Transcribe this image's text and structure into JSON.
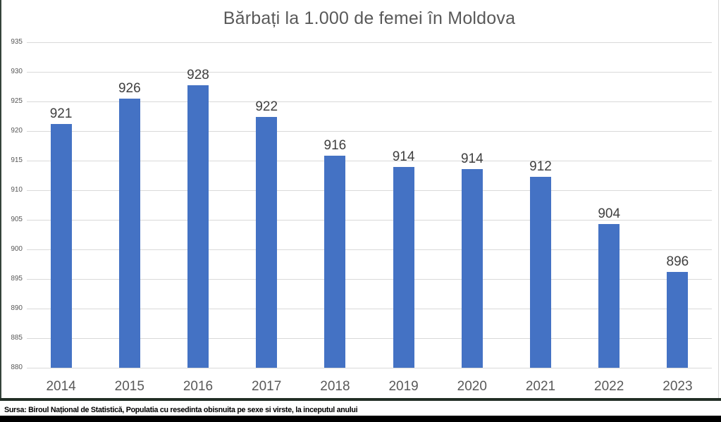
{
  "chart_data": {
    "type": "bar",
    "title": "Bărbați la 1.000 de femei în Moldova",
    "categories": [
      "2014",
      "2015",
      "2016",
      "2017",
      "2018",
      "2019",
      "2020",
      "2021",
      "2022",
      "2023"
    ],
    "values": [
      921,
      926,
      928,
      922,
      916,
      914,
      914,
      912,
      904,
      896
    ],
    "values_exact": [
      921.2,
      925.5,
      927.7,
      922.4,
      915.8,
      913.9,
      913.6,
      912.3,
      904.3,
      896.2
    ],
    "data_labels": [
      "921",
      "926",
      "928",
      "922",
      "916",
      "914",
      "914",
      "912",
      "904",
      "896"
    ],
    "xlabel": "",
    "ylabel": "",
    "ylim": [
      880,
      935
    ],
    "yticks": [
      935,
      930,
      925,
      920,
      915,
      910,
      905,
      900,
      895,
      890,
      885,
      880
    ],
    "grid": true,
    "legend": "none",
    "colors": {
      "bar": "#4472C4",
      "title": "#595959",
      "axis_labels": "#595959",
      "data_labels": "#404040",
      "gridlines": "#D9D9D9"
    }
  },
  "footer": {
    "source_text": "Sursa: Biroul Național de Statistică, Populatia cu resedinta obisnuita pe sexe si virste, la inceputul anului"
  }
}
